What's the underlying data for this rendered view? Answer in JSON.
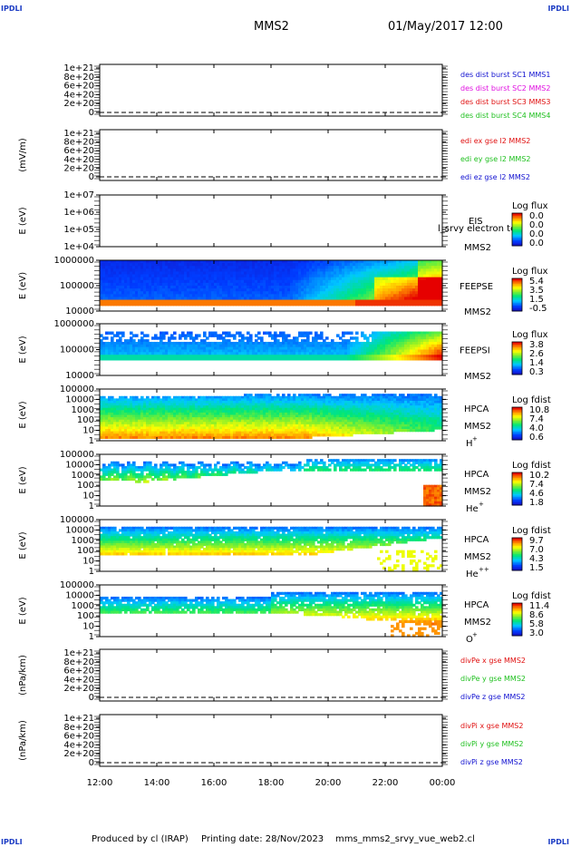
{
  "corner": {
    "tl": "IPDLI",
    "tr": "IPDLI",
    "bl": "IPDLI",
    "br": "IPDLI"
  },
  "header": {
    "spacecraft": "MMS2",
    "datetime": "01/May/2017 12:00"
  },
  "footer": {
    "produced": "Produced by cl (IRAP)",
    "printed": "Printing date: 28/Nov/2023",
    "file": "mms_mms2_srvy_vue_web2.cl"
  },
  "time_axis": {
    "ticks": [
      "12:00",
      "14:00",
      "16:00",
      "18:00",
      "20:00",
      "22:00",
      "00:00"
    ],
    "range_hours": [
      12,
      24
    ]
  },
  "colors": {
    "blue": "#1010d0",
    "magenta": "#e010e0",
    "red": "#e01010",
    "green": "#20c020",
    "dash": "#000000"
  },
  "chart_data": [
    {
      "type": "line",
      "id": "des",
      "ylabel": "",
      "ytick_labels": [
        "1e+21",
        "8e+20",
        "6e+20",
        "4e+20",
        "2e+20",
        "0"
      ],
      "ylim": [
        0,
        1e+21
      ],
      "series": [
        {
          "name": "des dist burst SC1 MMS1",
          "color": "blue",
          "values": []
        },
        {
          "name": "des dist burst SC2 MMS2",
          "color": "magenta",
          "values": []
        },
        {
          "name": "des dist burst SC3 MMS3",
          "color": "red",
          "values": []
        },
        {
          "name": "des dist burst SC4 MMS4",
          "color": "green",
          "values": []
        }
      ],
      "zero_line": "dashed"
    },
    {
      "type": "line",
      "id": "edi",
      "ylabel": "(mV/m)",
      "ytick_labels": [
        "1e+21",
        "8e+20",
        "6e+20",
        "4e+20",
        "2e+20",
        "0"
      ],
      "ylim": [
        0,
        1e+21
      ],
      "series": [
        {
          "name": "edi ex gse l2 MMS2",
          "color": "red",
          "values": []
        },
        {
          "name": "edi ey gse l2 MMS2",
          "color": "green",
          "values": []
        },
        {
          "name": "edi ez gse l2 MMS2",
          "color": "blue",
          "values": []
        }
      ],
      "zero_line": "dashed"
    },
    {
      "type": "heatmap",
      "id": "eis",
      "ylabel": "E (eV)",
      "ytick_labels": [
        "1e+07",
        "1e+06",
        "1e+05",
        "1e+04"
      ],
      "scale": "log",
      "labels": [
        "EIS",
        "MMS2"
      ],
      "overlay_text": "l_srvy electron to",
      "colorbar": {
        "title": "Log flux",
        "ticks": [
          "0.0",
          "0.0",
          "0.0",
          "0.0"
        ]
      },
      "fill": "empty"
    },
    {
      "type": "heatmap",
      "id": "feepse",
      "ylabel": "E (eV)",
      "ytick_labels": [
        "1000000",
        "100000",
        "10000"
      ],
      "scale": "log",
      "labels": [
        "FEEPSE",
        "MMS2"
      ],
      "colorbar": {
        "title": "Log flux",
        "ticks": [
          "5.4",
          "3.5",
          "1.5",
          "-0.5"
        ]
      },
      "fill": "feepse"
    },
    {
      "type": "heatmap",
      "id": "feepsi",
      "ylabel": "E (eV)",
      "ytick_labels": [
        "1000000",
        "100000",
        "10000"
      ],
      "scale": "log",
      "labels": [
        "FEEPSI",
        "MMS2"
      ],
      "colorbar": {
        "title": "Log flux",
        "ticks": [
          "3.8",
          "2.6",
          "1.4",
          "0.3"
        ]
      },
      "fill": "feepsi"
    },
    {
      "type": "heatmap",
      "id": "hpca-h",
      "ylabel": "E (eV)",
      "ytick_labels": [
        "100000",
        "10000",
        "1000",
        "100",
        "10",
        "1"
      ],
      "scale": "log",
      "labels": [
        "HPCA",
        "MMS2"
      ],
      "species": "H",
      "species_sup": "+",
      "colorbar": {
        "title": "Log fdist",
        "ticks": [
          "10.8",
          "7.4",
          "4.0",
          "0.6"
        ]
      },
      "fill": "hpca_h"
    },
    {
      "type": "heatmap",
      "id": "hpca-he",
      "ylabel": "E (eV)",
      "ytick_labels": [
        "100000",
        "10000",
        "1000",
        "100",
        "10",
        "1"
      ],
      "scale": "log",
      "labels": [
        "HPCA",
        "MMS2"
      ],
      "species": "He",
      "species_sup": "+",
      "colorbar": {
        "title": "Log fdist",
        "ticks": [
          "10.2",
          "7.4",
          "4.6",
          "1.8"
        ]
      },
      "fill": "hpca_he"
    },
    {
      "type": "heatmap",
      "id": "hpca-hepp",
      "ylabel": "E (eV)",
      "ytick_labels": [
        "100000",
        "10000",
        "1000",
        "100",
        "10",
        "1"
      ],
      "scale": "log",
      "labels": [
        "HPCA",
        "MMS2"
      ],
      "species": "He",
      "species_sup": "++",
      "colorbar": {
        "title": "Log fdist",
        "ticks": [
          "9.7",
          "7.0",
          "4.3",
          "1.5"
        ]
      },
      "fill": "hpca_hepp"
    },
    {
      "type": "heatmap",
      "id": "hpca-o",
      "ylabel": "E (eV)",
      "ytick_labels": [
        "100000",
        "10000",
        "1000",
        "100",
        "10",
        "1"
      ],
      "scale": "log",
      "labels": [
        "HPCA",
        "MMS2"
      ],
      "species": "O",
      "species_sup": "+",
      "colorbar": {
        "title": "Log fdist",
        "ticks": [
          "11.4",
          "8.6",
          "5.8",
          "3.0"
        ]
      },
      "fill": "hpca_o"
    },
    {
      "type": "line",
      "id": "divpe",
      "ylabel": "(nPa/km)",
      "ytick_labels": [
        "1e+21",
        "8e+20",
        "6e+20",
        "4e+20",
        "2e+20",
        "0"
      ],
      "ylim": [
        0,
        1e+21
      ],
      "series": [
        {
          "name": "divPe x gse MMS2",
          "color": "red",
          "values": []
        },
        {
          "name": "divPe y gse MMS2",
          "color": "green",
          "values": []
        },
        {
          "name": "divPe z gse MMS2",
          "color": "blue",
          "values": []
        }
      ],
      "zero_line": "dashed"
    },
    {
      "type": "line",
      "id": "divpi",
      "ylabel": "(nPa/km)",
      "ytick_labels": [
        "1e+21",
        "8e+20",
        "6e+20",
        "4e+20",
        "2e+20",
        "0"
      ],
      "ylim": [
        0,
        1e+21
      ],
      "series": [
        {
          "name": "divPi x gse MMS2",
          "color": "red",
          "values": []
        },
        {
          "name": "divPi y gse MMS2",
          "color": "green",
          "values": []
        },
        {
          "name": "divPi z gse MMS2",
          "color": "blue",
          "values": []
        }
      ],
      "zero_line": "dashed"
    }
  ]
}
